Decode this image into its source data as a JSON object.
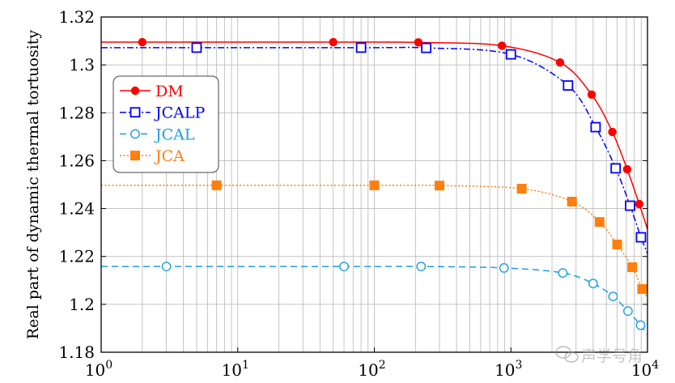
{
  "chart_data": {
    "type": "line",
    "title": "",
    "xlabel": "",
    "ylabel": "Real part of dynamic thermal tortuosity",
    "xscale": "log",
    "xlim": [
      1,
      10000
    ],
    "ylim": [
      1.18,
      1.32
    ],
    "grid": true,
    "legend_position": "upper-left",
    "x_tick_labels": [
      {
        "base": "10",
        "exp": "0",
        "value": 1
      },
      {
        "base": "10",
        "exp": "1",
        "value": 10
      },
      {
        "base": "10",
        "exp": "2",
        "value": 100
      },
      {
        "base": "10",
        "exp": "3",
        "value": 1000
      },
      {
        "base": "10",
        "exp": "4",
        "value": 10000
      }
    ],
    "y_ticks": [
      1.18,
      1.2,
      1.22,
      1.24,
      1.26,
      1.28,
      1.3,
      1.32
    ],
    "y_tick_labels": [
      "1.18",
      "1.2",
      "1.22",
      "1.24",
      "1.26",
      "1.28",
      "1.3",
      "1.32"
    ],
    "series": [
      {
        "name": "DM",
        "color": "#ff0000",
        "style": "solid",
        "marker": "filled-circle",
        "x": [
          2,
          50,
          210,
          860,
          2290,
          3900,
          5530,
          7100,
          8700
        ],
        "y": [
          1.3095,
          1.3095,
          1.3094,
          1.308,
          1.301,
          1.2876,
          1.272,
          1.2564,
          1.2419
        ],
        "curve_end": 1.2314
      },
      {
        "name": "JCALP",
        "color": "#0000ff",
        "style": "dashdot",
        "marker": "open-square",
        "x": [
          5,
          80,
          240,
          1000,
          2620,
          4170,
          5850,
          7460,
          8960
        ],
        "y": [
          1.3072,
          1.3072,
          1.3071,
          1.3044,
          1.2914,
          1.274,
          1.2568,
          1.2412,
          1.228
        ],
        "curve_end": 1.2213
      },
      {
        "name": "JCAL",
        "color": "#1a9fe0",
        "style": "dashed",
        "marker": "open-circle",
        "x": [
          3,
          60,
          220,
          890,
          2400,
          4000,
          5600,
          7200,
          8900
        ],
        "y": [
          1.2158,
          1.2158,
          1.2158,
          1.2152,
          1.2131,
          1.2087,
          1.2033,
          1.1972,
          1.1913
        ],
        "curve_end": 1.1874
      },
      {
        "name": "JCA",
        "color": "#ff7f0e",
        "style": "dotted",
        "marker": "filled-square",
        "x": [
          7,
          100,
          300,
          1200,
          2800,
          4460,
          6000,
          7730,
          9140
        ],
        "y": [
          1.2497,
          1.2497,
          1.2496,
          1.2483,
          1.2429,
          1.2344,
          1.225,
          1.2155,
          1.2064
        ],
        "curve_end": 1.2027
      }
    ]
  },
  "watermark": "声学号角"
}
